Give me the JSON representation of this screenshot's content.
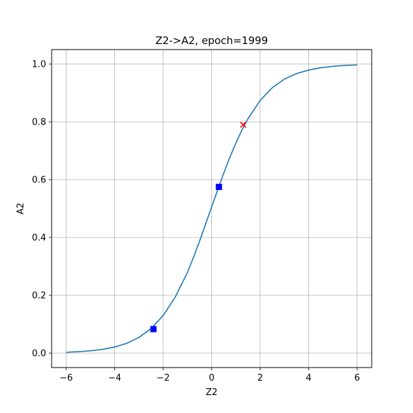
{
  "chart_data": {
    "type": "line",
    "title": "Z2->A2, epoch=1999",
    "xlabel": "Z2",
    "ylabel": "A2",
    "xlim": [
      -6.6,
      6.6
    ],
    "ylim": [
      -0.05,
      1.05
    ],
    "xticks": [
      -6,
      -4,
      -2,
      0,
      2,
      4,
      6
    ],
    "yticks": [
      0.0,
      0.2,
      0.4,
      0.6,
      0.8,
      1.0
    ],
    "xtick_labels": [
      "−6",
      "−4",
      "−2",
      "0",
      "2",
      "4",
      "6"
    ],
    "ytick_labels": [
      "0.0",
      "0.2",
      "0.4",
      "0.6",
      "0.8",
      "1.0"
    ],
    "grid": true,
    "series": [
      {
        "x": [
          -6.0,
          -5.5,
          -5.0,
          -4.5,
          -4.0,
          -3.5,
          -3.0,
          -2.5,
          -2.0,
          -1.5,
          -1.0,
          -0.75,
          -0.5,
          -0.25,
          0.0,
          0.25,
          0.5,
          0.75,
          1.0,
          1.25,
          1.5,
          2.0,
          2.5,
          3.0,
          3.5,
          4.0,
          4.5,
          5.0,
          5.5,
          6.0
        ],
        "y": [
          0.003,
          0.005,
          0.008,
          0.013,
          0.021,
          0.034,
          0.054,
          0.085,
          0.13,
          0.194,
          0.279,
          0.331,
          0.387,
          0.446,
          0.506,
          0.565,
          0.623,
          0.677,
          0.727,
          0.772,
          0.811,
          0.874,
          0.918,
          0.948,
          0.967,
          0.979,
          0.987,
          0.992,
          0.995,
          0.997
        ],
        "color": "#1f77b4"
      }
    ],
    "markers": [
      {
        "shape": "square",
        "x": -2.4,
        "y": 0.083,
        "color": "#0000ff"
      },
      {
        "shape": "square",
        "x": 0.3,
        "y": 0.575,
        "color": "#0000ff"
      },
      {
        "shape": "x",
        "x": 1.3,
        "y": 0.79,
        "color": "#ff0000"
      }
    ]
  }
}
